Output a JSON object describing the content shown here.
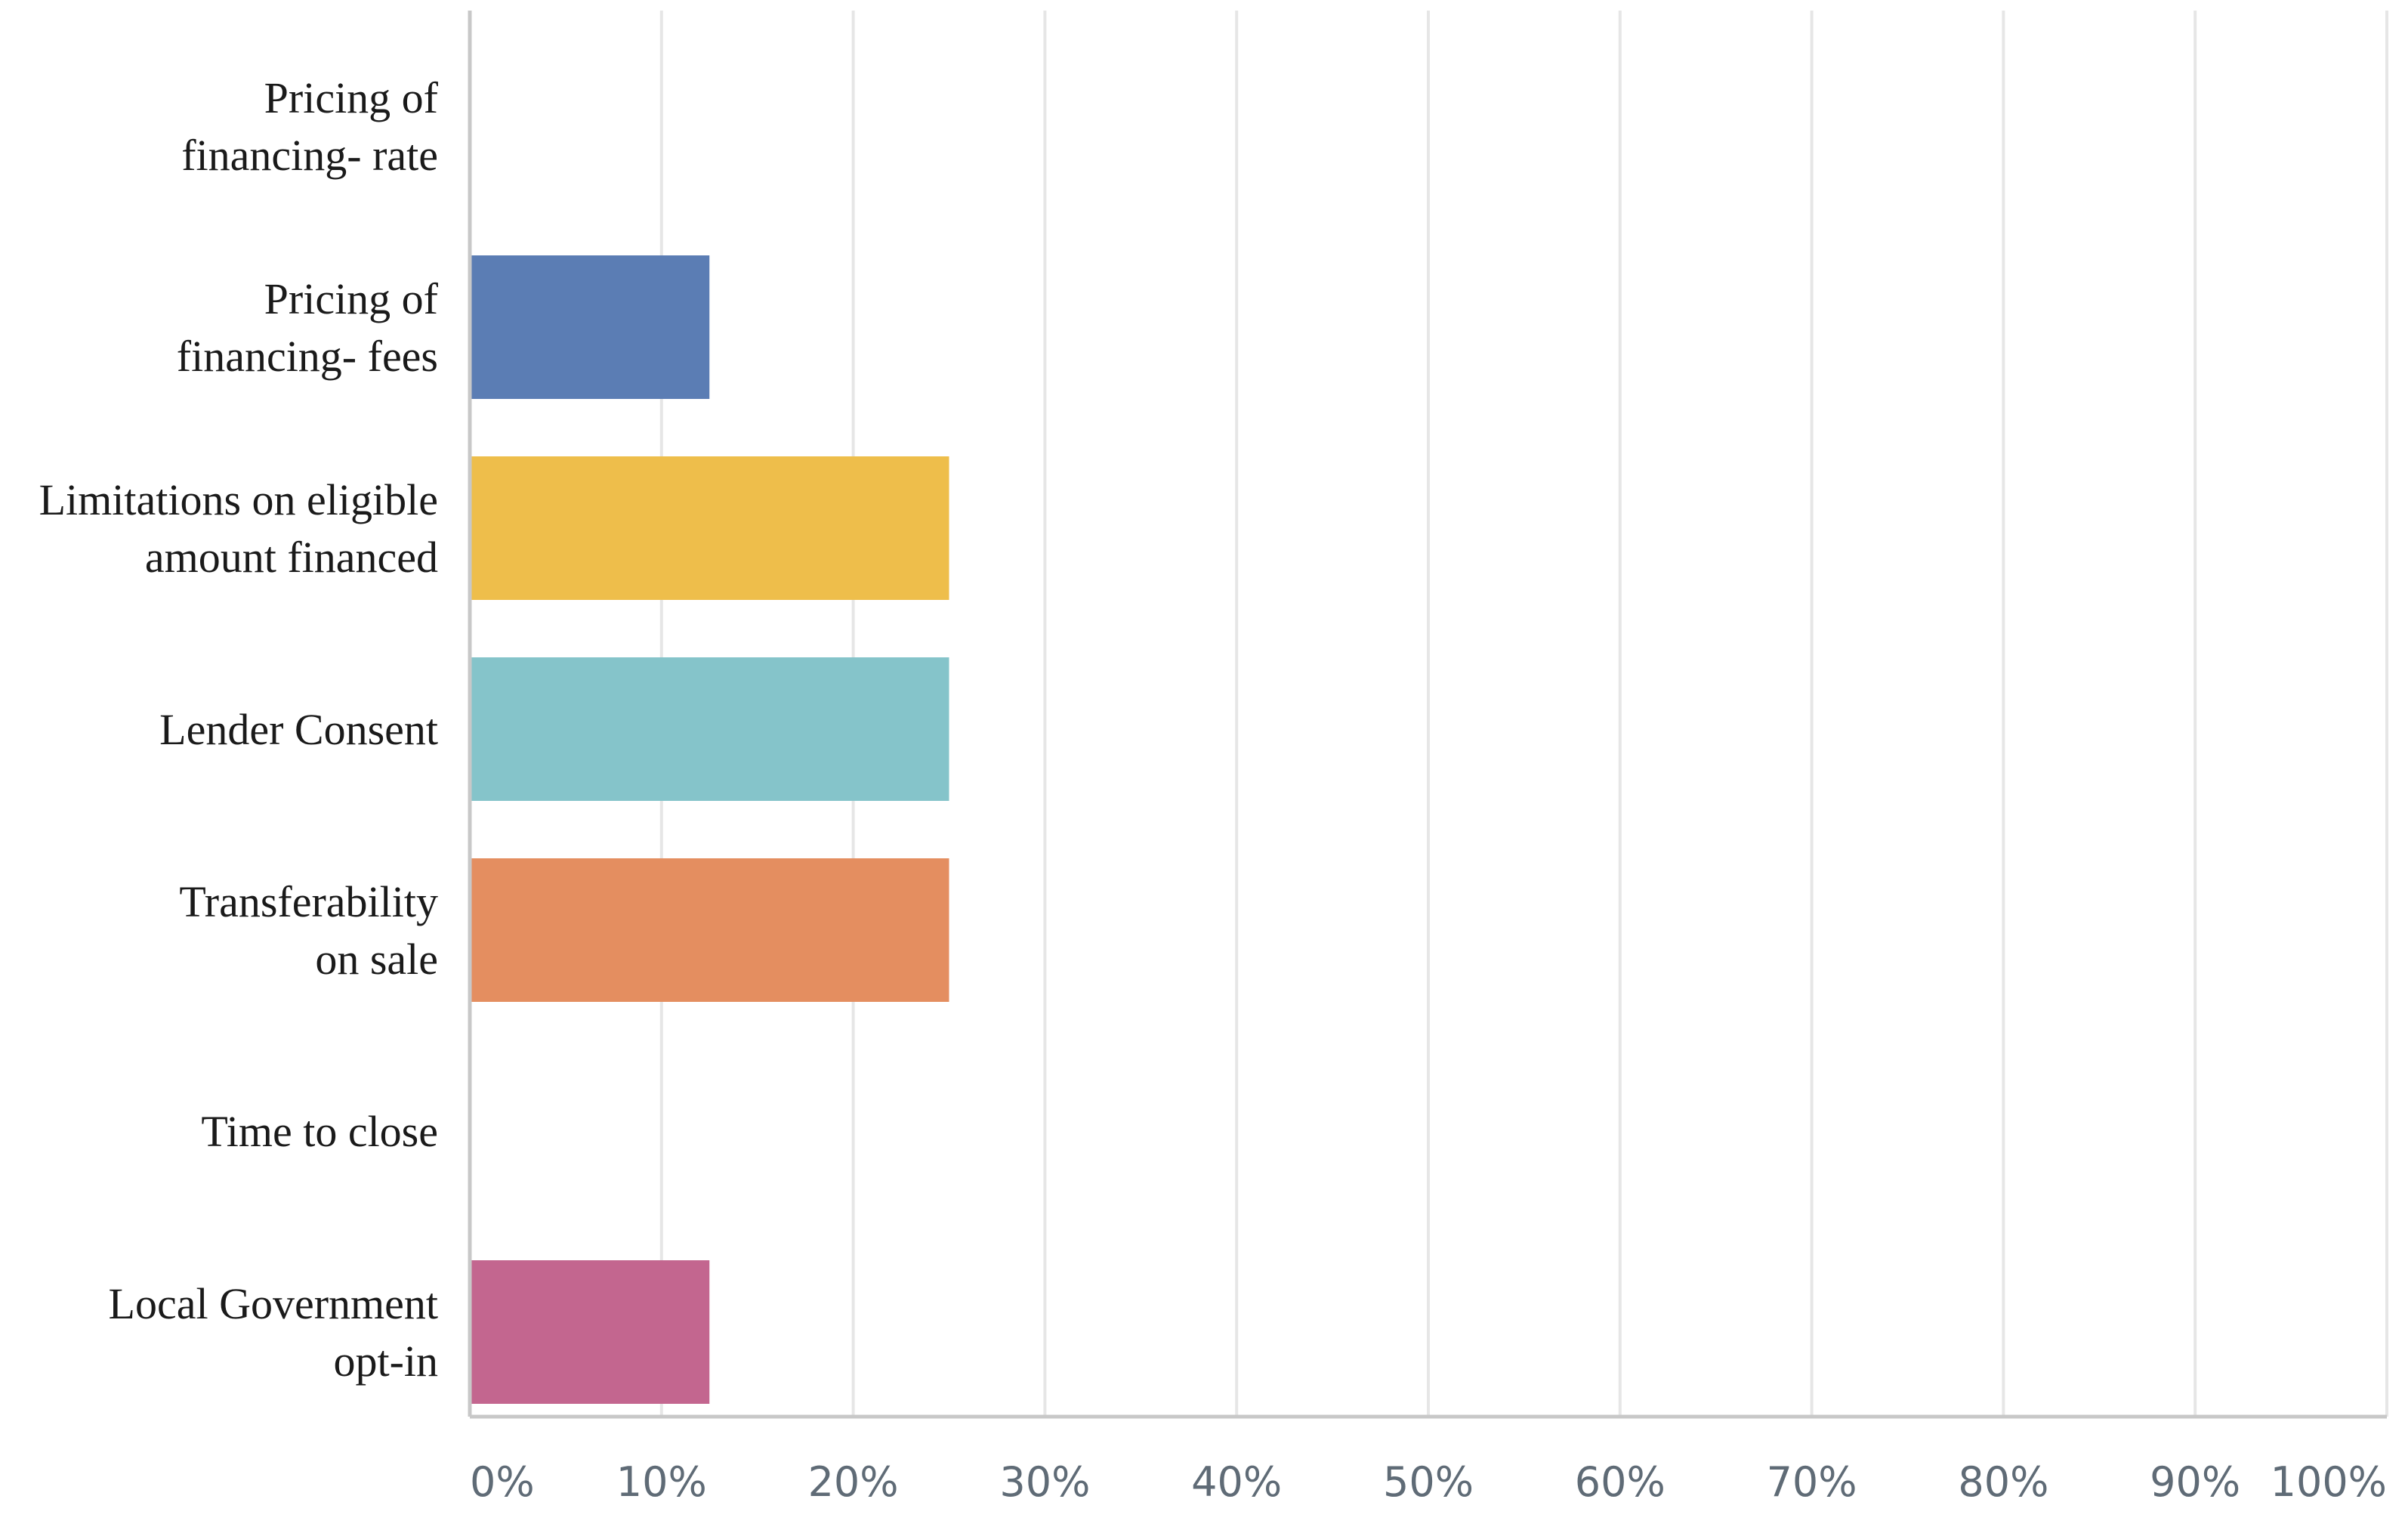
{
  "chart_data": {
    "type": "bar",
    "orientation": "horizontal",
    "categories": [
      [
        "Pricing of",
        "financing- rate"
      ],
      [
        "Pricing of",
        "financing- fees"
      ],
      [
        "Limitations on eligible",
        "amount financed"
      ],
      [
        "Lender Consent"
      ],
      [
        "Transferability",
        "on sale"
      ],
      [
        "Time to close"
      ],
      [
        "Local Government",
        "opt-in"
      ]
    ],
    "values": [
      0,
      12.5,
      25,
      25,
      25,
      0,
      12.5
    ],
    "colors": [
      "#5b7db4",
      "#5b7db4",
      "#eebe4b",
      "#85c4ca",
      "#e48e60",
      "#9b6ea8",
      "#c3668f"
    ],
    "xlim": [
      0,
      100
    ],
    "x_ticks": [
      0,
      10,
      20,
      30,
      40,
      50,
      60,
      70,
      80,
      90,
      100
    ],
    "x_tick_labels": [
      "0%",
      "10%",
      "20%",
      "30%",
      "40%",
      "50%",
      "60%",
      "70%",
      "80%",
      "90%",
      "100%"
    ],
    "grid": true,
    "title": "",
    "xlabel": "",
    "ylabel": ""
  }
}
